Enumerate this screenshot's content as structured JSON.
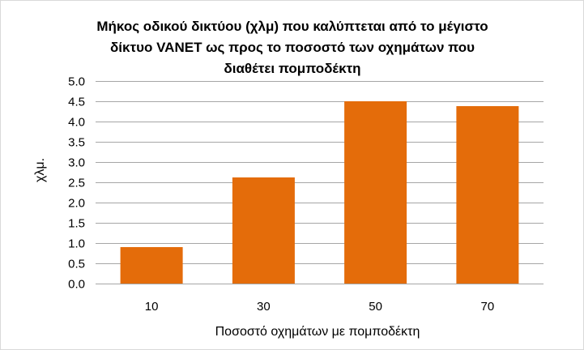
{
  "chart_data": {
    "type": "bar",
    "title_lines": [
      "Μήκος οδικού δικτύου (χλμ) που καλύπτεται από το μέγιστο",
      "δίκτυο VANET  ως προς το ποσοστό των οχημάτων που",
      "διαθέτει πομποδέκτη"
    ],
    "categories": [
      "10",
      "30",
      "50",
      "70"
    ],
    "values": [
      0.9,
      2.62,
      4.5,
      4.38
    ],
    "xlabel": "Ποσοστό οχημάτων με πομποδέκτη",
    "ylabel": "χλμ.",
    "ylim": [
      0,
      5
    ],
    "yticks": [
      "0.0",
      "0.5",
      "1.0",
      "1.5",
      "2.0",
      "2.5",
      "3.0",
      "3.5",
      "4.0",
      "4.5",
      "5.0"
    ],
    "bar_color": "#e46c0a",
    "gridline_color": "#a6a6a6",
    "grid": true,
    "legend": "none"
  }
}
